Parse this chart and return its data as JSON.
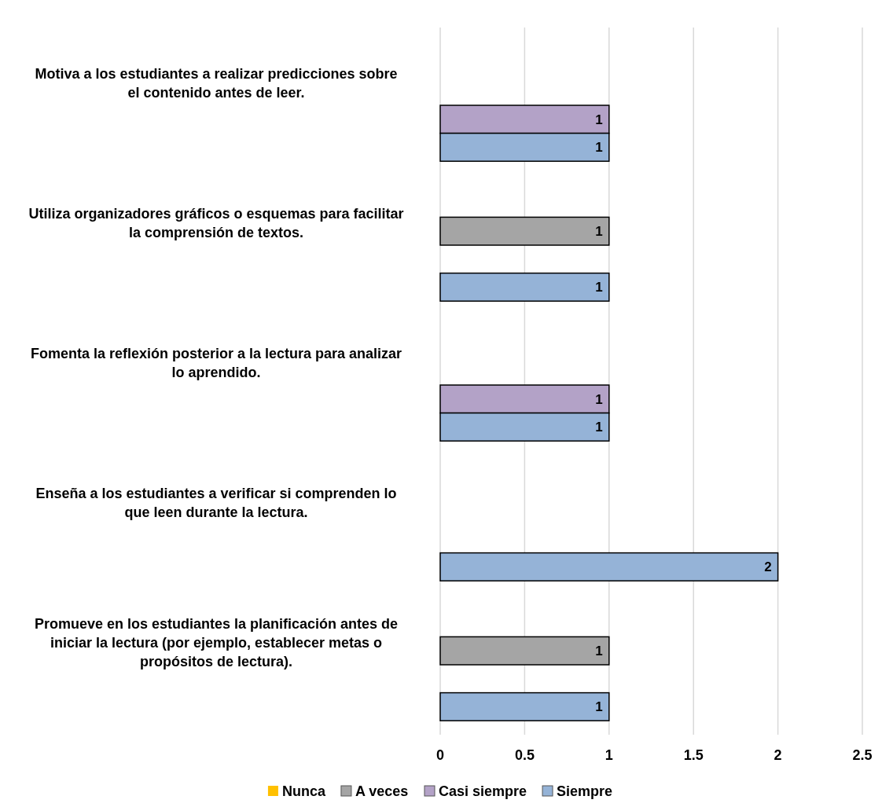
{
  "chart_data": {
    "type": "bar",
    "orientation": "horizontal",
    "categories": [
      "Motiva a los estudiantes a realizar predicciones sobre el contenido antes de leer.",
      "Utiliza organizadores gráficos o esquemas para facilitar la comprensión de textos.",
      "Fomenta la reflexión posterior a la lectura para analizar lo aprendido.",
      "Enseña a los estudiantes a verificar si comprenden lo que leen durante la lectura.",
      "Promueve en los estudiantes la planificación antes de iniciar la lectura (por ejemplo, establecer metas o propósitos de lectura)."
    ],
    "series": [
      {
        "name": "Nunca",
        "color": "#ffc000",
        "values": [
          null,
          null,
          null,
          null,
          null
        ]
      },
      {
        "name": "A veces",
        "color": "#a5a5a5",
        "values": [
          null,
          1,
          null,
          null,
          1
        ]
      },
      {
        "name": "Casi siempre",
        "color": "#b3a2c7",
        "values": [
          1,
          null,
          1,
          null,
          null
        ]
      },
      {
        "name": "Siempre",
        "color": "#95b3d7",
        "values": [
          1,
          1,
          1,
          2,
          1
        ]
      }
    ],
    "xlim": [
      0,
      2.5
    ],
    "xticks": [
      0,
      0.5,
      1,
      1.5,
      2,
      2.5
    ],
    "grid": "x",
    "legend": "bottom",
    "data_labels": true
  }
}
